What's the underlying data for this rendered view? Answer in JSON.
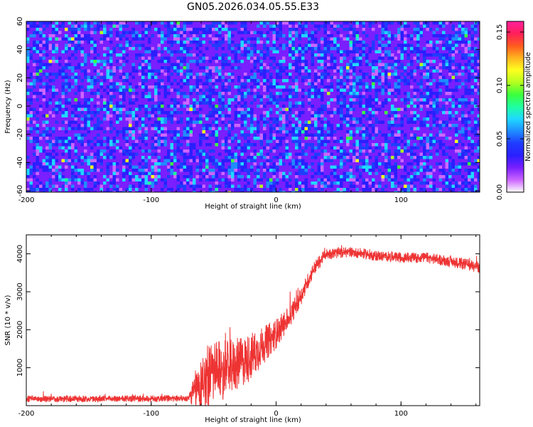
{
  "figure_title": "GN05.2026.034.05.55.E33",
  "chart_data": [
    {
      "type": "heatmap",
      "title": "GN05.2026.034.05.55.E33",
      "xlabel": "Height of straight line (km)",
      "ylabel": "Frequency (Hz)",
      "xlim": [
        -200,
        163
      ],
      "ylim": [
        -61,
        60
      ],
      "xticks": [
        -200,
        -100,
        0,
        100
      ],
      "xtick_labels": [
        "-200",
        "-100",
        "0",
        "100"
      ],
      "yticks": [
        60,
        40,
        20,
        0,
        -20,
        -40,
        -60
      ],
      "ytick_labels": [
        "60",
        "40",
        "20",
        "0",
        "-20",
        "-40",
        "-60"
      ],
      "colorbar": {
        "label": "Normalized spectral amplitude",
        "range": [
          0.0,
          0.16
        ],
        "ticks": [
          0.0,
          0.05,
          0.1,
          0.15
        ],
        "tick_labels": [
          "0.00",
          "0.05",
          "0.10",
          "0.15"
        ],
        "colors": [
          "#ffffff",
          "#cc66ff",
          "#7a1fff",
          "#2a1fff",
          "#1f3cff",
          "#1f8cff",
          "#1fd8ff",
          "#1fffa0",
          "#3cff3c",
          "#b4ff1f",
          "#ffff1f",
          "#ffb41f",
          "#ff5a1f",
          "#ff1f5a",
          "#ff1f9e"
        ]
      },
      "description_values": {
        "background_level": 0.025,
        "typical_peak_level": 0.06,
        "max_level": 0.12
      }
    },
    {
      "type": "line",
      "xlabel": "Height of straight line (km)",
      "ylabel": "SNR (10 * v/v)",
      "xlim": [
        -200,
        163
      ],
      "ylim": [
        0,
        4500
      ],
      "xticks": [
        -200,
        -100,
        0,
        100
      ],
      "xtick_labels": [
        "-200",
        "-100",
        "0",
        "100"
      ],
      "yticks": [
        1000,
        2000,
        3000,
        4000
      ],
      "ytick_labels": [
        "1000",
        "2000",
        "3000",
        "4000"
      ],
      "series": [
        {
          "name": "SNR",
          "color": "#ee3333",
          "trend_x": [
            -200,
            -150,
            -100,
            -70,
            -65,
            -55,
            -45,
            -30,
            -20,
            -10,
            0,
            10,
            20,
            30,
            40,
            60,
            80,
            100,
            120,
            140,
            163
          ],
          "trend_y": [
            180,
            180,
            180,
            200,
            400,
            800,
            900,
            1100,
            1300,
            1600,
            1900,
            2300,
            2900,
            3600,
            4000,
            4050,
            3950,
            3900,
            3900,
            3800,
            3650
          ],
          "spread_y": [
            90,
            90,
            90,
            90,
            500,
            900,
            800,
            700,
            650,
            500,
            400,
            300,
            250,
            200,
            150,
            140,
            140,
            140,
            140,
            150,
            160
          ]
        }
      ]
    }
  ]
}
